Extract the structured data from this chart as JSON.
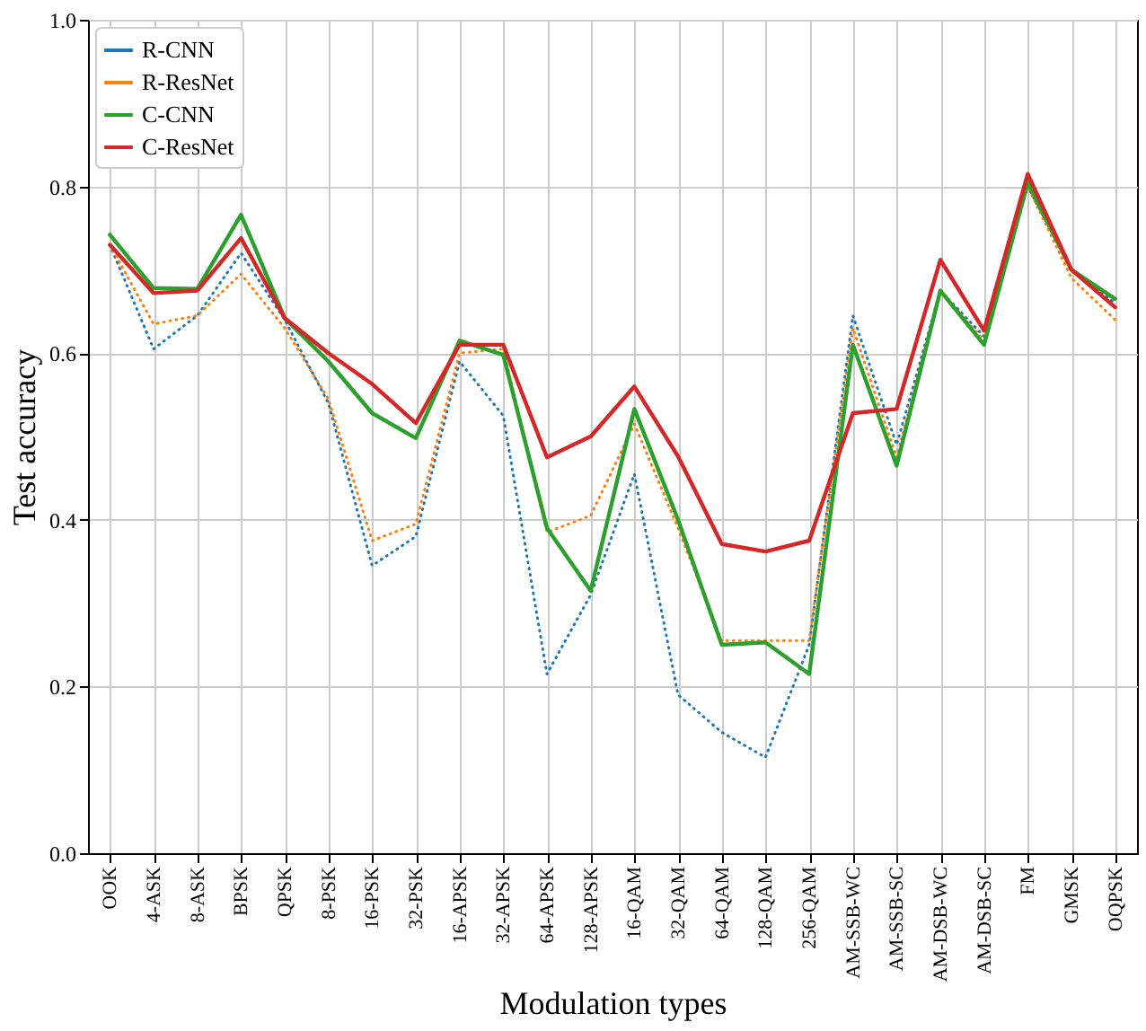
{
  "chart_data": {
    "type": "line",
    "xlabel": "Modulation types",
    "ylabel": "Test accuracy",
    "categories": [
      "OOK",
      "4-ASK",
      "8-ASK",
      "BPSK",
      "QPSK",
      "8-PSK",
      "16-PSK",
      "32-PSK",
      "16-APSK",
      "32-APSK",
      "64-APSK",
      "128-APSK",
      "16-QAM",
      "32-QAM",
      "64-QAM",
      "128-QAM",
      "256-QAM",
      "AM-SSB-WC",
      "AM-SSB-SC",
      "AM-DSB-WC",
      "AM-DSB-SC",
      "FM",
      "GMSK",
      "OQPSK"
    ],
    "series": [
      {
        "name": "R-CNN",
        "color": "#1f77b4",
        "line_style": "dotted",
        "values": [
          0.73,
          0.605,
          0.645,
          0.72,
          0.64,
          0.54,
          0.345,
          0.38,
          0.59,
          0.525,
          0.215,
          0.31,
          0.455,
          0.19,
          0.145,
          0.115,
          0.25,
          0.645,
          0.49,
          0.675,
          0.62,
          0.8,
          0.7,
          0.66
        ]
      },
      {
        "name": "R-ResNet",
        "color": "#ff7f0e",
        "line_style": "dotted",
        "values": [
          0.73,
          0.635,
          0.645,
          0.695,
          0.63,
          0.545,
          0.375,
          0.395,
          0.6,
          0.605,
          0.385,
          0.405,
          0.515,
          0.39,
          0.255,
          0.255,
          0.255,
          0.63,
          0.475,
          0.675,
          0.615,
          0.8,
          0.69,
          0.64
        ]
      },
      {
        "name": "C-CNN",
        "color": "#2ca02c",
        "line_style": "solid",
        "values": [
          0.742,
          0.678,
          0.677,
          0.766,
          0.642,
          0.59,
          0.528,
          0.498,
          0.615,
          0.598,
          0.39,
          0.315,
          0.533,
          0.4,
          0.25,
          0.253,
          0.215,
          0.61,
          0.465,
          0.675,
          0.61,
          0.805,
          0.7,
          0.665
        ]
      },
      {
        "name": "C-ResNet",
        "color": "#d62728",
        "line_style": "solid",
        "values": [
          0.73,
          0.672,
          0.675,
          0.738,
          0.642,
          0.6,
          0.563,
          0.516,
          0.61,
          0.61,
          0.475,
          0.5,
          0.56,
          0.476,
          0.371,
          0.362,
          0.375,
          0.528,
          0.533,
          0.712,
          0.627,
          0.815,
          0.7,
          0.655
        ]
      }
    ],
    "ylim": [
      0.0,
      1.0
    ],
    "yticks": [
      {
        "value": 0.0,
        "label": "0.0"
      },
      {
        "value": 0.2,
        "label": "0.2"
      },
      {
        "value": 0.4,
        "label": "0.4"
      },
      {
        "value": 0.6,
        "label": "0.6"
      },
      {
        "value": 0.8,
        "label": "0.8"
      },
      {
        "value": 1.0,
        "label": "1.0"
      }
    ],
    "grid": true,
    "legend": "top left",
    "marker": "none"
  }
}
